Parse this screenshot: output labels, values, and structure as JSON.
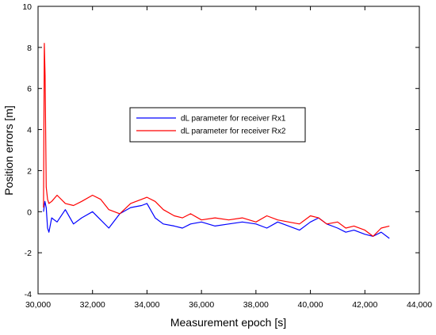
{
  "chart_data": {
    "type": "line",
    "title": "",
    "xlabel": "Measurement epoch [s]",
    "ylabel": "Position errors [m]",
    "xlim": [
      30000,
      44000
    ],
    "ylim": [
      -4,
      10
    ],
    "xticks": [
      30000,
      32000,
      34000,
      36000,
      38000,
      40000,
      42000,
      44000
    ],
    "xtick_labels": [
      "30,000",
      "32,000",
      "34,000",
      "36,000",
      "38,000",
      "40,000",
      "42,000",
      "44,000"
    ],
    "yticks": [
      -4,
      -2,
      0,
      2,
      4,
      6,
      8,
      10
    ],
    "ytick_labels": [
      "-4",
      "-2",
      "0",
      "2",
      "4",
      "6",
      "8",
      "10"
    ],
    "grid": false,
    "legend_position": "center",
    "series": [
      {
        "name": "dL parameter for receiver Rx1",
        "color": "#0000ff",
        "x": [
          30200,
          30250,
          30300,
          30350,
          30400,
          30500,
          30700,
          31000,
          31300,
          31600,
          32000,
          32300,
          32600,
          33000,
          33400,
          33800,
          34000,
          34300,
          34600,
          35000,
          35300,
          35600,
          36000,
          36500,
          37000,
          37500,
          38000,
          38400,
          38800,
          39200,
          39600,
          40000,
          40300,
          40600,
          41000,
          41300,
          41600,
          42000,
          42300,
          42600,
          42900
        ],
        "y": [
          0.0,
          0.5,
          0.2,
          -0.8,
          -1.0,
          -0.3,
          -0.5,
          0.1,
          -0.6,
          -0.3,
          0.0,
          -0.4,
          -0.8,
          -0.1,
          0.2,
          0.3,
          0.4,
          -0.3,
          -0.6,
          -0.7,
          -0.8,
          -0.6,
          -0.5,
          -0.7,
          -0.6,
          -0.5,
          -0.6,
          -0.8,
          -0.5,
          -0.7,
          -0.9,
          -0.5,
          -0.3,
          -0.6,
          -0.8,
          -1.0,
          -0.9,
          -1.1,
          -1.2,
          -1.0,
          -1.3
        ]
      },
      {
        "name": "dL parameter for receiver Rx2",
        "color": "#ff0000",
        "x": [
          30200,
          30230,
          30260,
          30300,
          30350,
          30400,
          30500,
          30700,
          31000,
          31300,
          31600,
          32000,
          32300,
          32600,
          33000,
          33400,
          33800,
          34000,
          34300,
          34600,
          35000,
          35300,
          35600,
          36000,
          36500,
          37000,
          37500,
          38000,
          38400,
          38800,
          39200,
          39600,
          40000,
          40300,
          40600,
          41000,
          41300,
          41600,
          42000,
          42300,
          42600,
          42900
        ],
        "y": [
          0.2,
          8.2,
          6.6,
          1.2,
          0.6,
          0.4,
          0.5,
          0.8,
          0.4,
          0.3,
          0.5,
          0.8,
          0.6,
          0.1,
          -0.1,
          0.4,
          0.6,
          0.7,
          0.5,
          0.1,
          -0.2,
          -0.3,
          -0.1,
          -0.4,
          -0.3,
          -0.4,
          -0.3,
          -0.5,
          -0.2,
          -0.4,
          -0.5,
          -0.6,
          -0.2,
          -0.3,
          -0.6,
          -0.5,
          -0.8,
          -0.7,
          -0.9,
          -1.2,
          -0.8,
          -0.7
        ]
      }
    ]
  }
}
